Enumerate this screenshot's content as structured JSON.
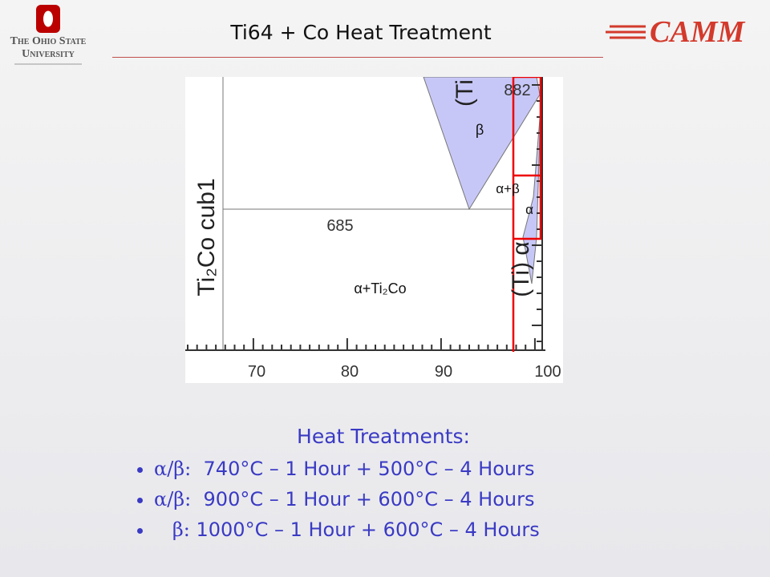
{
  "header": {
    "logo_left": {
      "line1": "The Ohio State",
      "line2": "University"
    },
    "title": "Ti64 + Co Heat Treatment",
    "logo_right": "CAMM"
  },
  "figure": {
    "y_label": "Ti₂Co cub1",
    "top_label": "(Ti",
    "right_label": "(Ti) α",
    "temp_high": "882",
    "temp_low": "685",
    "regions": [
      "β",
      "α+β",
      "α",
      "α+Ti₂Co"
    ],
    "x_tick_labels": [
      "70",
      "80",
      "90",
      "100"
    ]
  },
  "treatments": {
    "heading": "Heat Treatments:",
    "items": [
      {
        "phase": "α/β:",
        "text": "740°C – 1 Hour + 500°C – 4 Hours"
      },
      {
        "phase": "α/β:",
        "text": "900°C – 1 Hour + 600°C – 4 Hours"
      },
      {
        "phase": "β:",
        "text": "1000°C – 1 Hour + 600°C – 4 Hours"
      }
    ]
  }
}
